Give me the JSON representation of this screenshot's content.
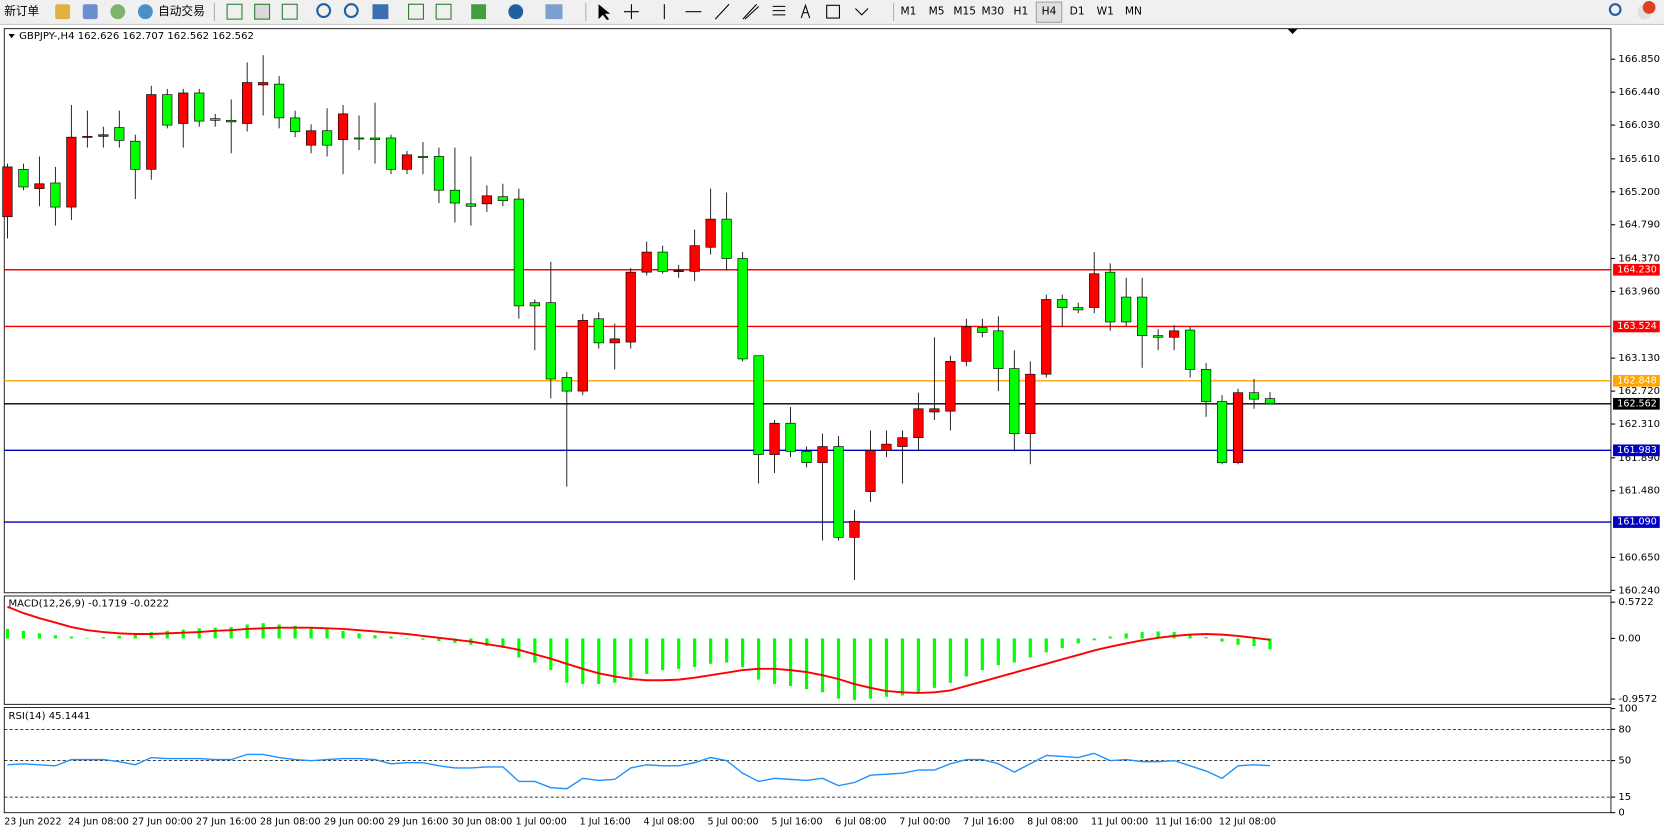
{
  "toolbar": {
    "new_order": "新订单",
    "auto_trading": "自动交易",
    "timeframes": [
      "M1",
      "M5",
      "M15",
      "M30",
      "H1",
      "H4",
      "D1",
      "W1",
      "MN"
    ],
    "active_timeframe_index": 5
  },
  "chart_data": [
    {
      "type": "candlestick",
      "title": "GBPJPY-,H4  162.626 162.707 162.562 162.562",
      "categories": [
        "23 Jun 2022",
        null,
        null,
        null,
        "24 Jun 08:00",
        null,
        null,
        null,
        "27 Jun 00:00",
        null,
        null,
        null,
        "27 Jun 16:00",
        null,
        null,
        null,
        "28 Jun 08:00",
        null,
        null,
        null,
        "29 Jun 00:00",
        null,
        null,
        null,
        "29 Jun 16:00",
        null,
        null,
        null,
        "30 Jun 08:00",
        null,
        null,
        null,
        "1 Jul 00:00",
        null,
        null,
        null,
        "1 Jul 16:00",
        null,
        null,
        null,
        "4 Jul 08:00",
        null,
        null,
        null,
        "5 Jul 00:00",
        null,
        null,
        null,
        "5 Jul 16:00",
        null,
        null,
        null,
        "6 Jul 08:00",
        null,
        null,
        null,
        "7 Jul 00:00",
        null,
        null,
        null,
        "7 Jul 16:00",
        null,
        null,
        null,
        "8 Jul 08:00",
        null,
        null,
        null,
        "11 Jul 00:00",
        null,
        null,
        null,
        "11 Jul 16:00",
        null,
        null,
        null,
        "12 Jul 08:00",
        null,
        null,
        null
      ],
      "open": [
        164.89,
        165.48,
        165.24,
        165.31,
        165.01,
        165.88,
        165.89,
        166.0,
        165.83,
        165.48,
        166.41,
        166.05,
        166.43,
        166.11,
        166.09,
        166.05,
        166.53,
        166.54,
        166.12,
        165.78,
        165.96,
        165.85,
        165.87,
        165.87,
        165.87,
        165.48,
        165.64,
        165.64,
        165.22,
        165.05,
        165.05,
        165.14,
        165.11,
        163.82,
        163.82,
        162.89,
        162.72,
        163.62,
        163.32,
        163.33,
        164.2,
        164.45,
        164.21,
        164.21,
        164.51,
        164.86,
        164.37,
        163.16,
        161.93,
        162.32,
        161.97,
        161.83,
        162.03,
        160.9,
        161.47,
        161.98,
        162.03,
        162.14,
        162.46,
        162.47,
        163.09,
        163.51,
        163.47,
        163.0,
        162.19,
        162.93,
        163.86,
        163.76,
        163.76,
        164.2,
        163.89,
        163.89,
        163.41,
        163.39,
        163.48,
        162.99,
        162.59,
        161.83,
        162.7,
        162.626
      ],
      "high": [
        165.55,
        165.55,
        165.64,
        165.51,
        166.28,
        166.21,
        166.01,
        166.21,
        165.91,
        166.52,
        166.48,
        166.48,
        166.48,
        166.17,
        166.35,
        166.81,
        166.9,
        166.64,
        166.21,
        166.04,
        166.24,
        166.28,
        166.15,
        166.31,
        165.91,
        165.71,
        165.82,
        165.75,
        165.75,
        165.64,
        165.28,
        165.3,
        165.24,
        163.86,
        164.33,
        162.96,
        163.68,
        163.7,
        163.56,
        164.25,
        164.58,
        164.53,
        164.29,
        164.73,
        165.24,
        165.19,
        164.45,
        163.16,
        162.36,
        162.52,
        162.03,
        162.19,
        162.16,
        161.24,
        162.23,
        162.23,
        162.23,
        162.7,
        163.39,
        163.16,
        163.62,
        163.62,
        163.65,
        163.23,
        163.09,
        163.92,
        163.92,
        163.82,
        164.45,
        164.31,
        164.13,
        164.13,
        163.49,
        163.54,
        163.52,
        163.07,
        162.67,
        162.75,
        162.87,
        162.707
      ],
      "low": [
        164.62,
        165.22,
        165.02,
        164.78,
        164.85,
        165.75,
        165.75,
        165.75,
        165.11,
        165.35,
        165.99,
        165.75,
        166.01,
        166.01,
        165.68,
        165.95,
        166.15,
        165.99,
        165.88,
        165.68,
        165.64,
        165.42,
        165.72,
        165.55,
        165.42,
        165.42,
        165.42,
        165.06,
        164.82,
        164.78,
        164.95,
        165.02,
        163.62,
        163.23,
        162.63,
        161.53,
        162.67,
        163.25,
        162.99,
        163.25,
        164.16,
        164.18,
        164.13,
        164.09,
        164.42,
        164.22,
        163.09,
        161.57,
        161.7,
        161.9,
        161.77,
        160.86,
        160.86,
        160.37,
        161.34,
        161.9,
        161.57,
        161.97,
        162.36,
        162.23,
        163.03,
        163.39,
        162.72,
        161.97,
        161.81,
        162.89,
        163.52,
        163.69,
        163.69,
        163.47,
        163.53,
        163.01,
        163.23,
        163.23,
        162.89,
        162.4,
        161.81,
        161.81,
        162.5,
        162.562
      ],
      "close": [
        165.51,
        165.26,
        165.3,
        165.01,
        165.88,
        165.89,
        165.91,
        165.84,
        165.48,
        166.41,
        166.03,
        166.43,
        166.08,
        166.09,
        166.07,
        166.56,
        166.56,
        166.12,
        165.95,
        165.96,
        165.78,
        166.17,
        165.87,
        165.85,
        165.48,
        165.66,
        165.64,
        165.22,
        165.06,
        165.02,
        165.15,
        165.09,
        163.78,
        163.78,
        162.87,
        162.72,
        163.6,
        163.32,
        163.37,
        164.2,
        164.45,
        164.21,
        164.22,
        164.53,
        164.86,
        164.37,
        163.12,
        161.93,
        162.32,
        161.97,
        161.83,
        162.03,
        160.9,
        161.1,
        161.98,
        162.06,
        162.14,
        162.5,
        162.5,
        163.09,
        163.52,
        163.45,
        163.0,
        162.19,
        162.93,
        163.86,
        163.76,
        163.73,
        164.18,
        163.58,
        163.58,
        163.41,
        163.39,
        163.47,
        162.99,
        162.59,
        161.83,
        162.7,
        162.62,
        162.562
      ],
      "up_color": "#ff0000",
      "down_color": "#00ff00",
      "ylim": [
        160.21,
        167.23
      ],
      "yticks": [
        {
          "value": 166.85,
          "label": "166.850"
        },
        {
          "value": 166.44,
          "label": "166.440"
        },
        {
          "value": 166.03,
          "label": "166.030"
        },
        {
          "value": 165.61,
          "label": "165.610"
        },
        {
          "value": 165.2,
          "label": "165.200"
        },
        {
          "value": 164.79,
          "label": "164.790"
        },
        {
          "value": 164.37,
          "label": "164.370"
        },
        {
          "value": 163.96,
          "label": "163.960"
        },
        {
          "value": 163.13,
          "label": "163.130"
        },
        {
          "value": 162.72,
          "label": "162.720"
        },
        {
          "value": 162.31,
          "label": "162.310"
        },
        {
          "value": 161.89,
          "label": "161.890"
        },
        {
          "value": 161.48,
          "label": "161.480"
        },
        {
          "value": 160.65,
          "label": "160.650"
        },
        {
          "value": 160.24,
          "label": "160.240"
        }
      ],
      "levels": [
        {
          "value": 164.23,
          "label": "164.230",
          "color": "#ff0000"
        },
        {
          "value": 163.524,
          "label": "163.524",
          "color": "#ff0000"
        },
        {
          "value": 162.848,
          "label": "162.848",
          "color": "#ffa500"
        },
        {
          "value": 162.562,
          "label": "162.562",
          "color": "#000000"
        },
        {
          "value": 161.983,
          "label": "161.983",
          "color": "#0000c0"
        },
        {
          "value": 161.09,
          "label": "161.090",
          "color": "#0000c0"
        }
      ],
      "grid": false
    },
    {
      "type": "macd",
      "title": "MACD(12,26,9) -0.1719 -0.0222",
      "histogram": {
        "color": "#00ff00",
        "values": [
          0.15,
          0.12,
          0.08,
          0.05,
          0.03,
          0.01,
          0.02,
          0.04,
          0.06,
          0.1,
          0.12,
          0.14,
          0.16,
          0.17,
          0.18,
          0.22,
          0.24,
          0.22,
          0.2,
          0.17,
          0.15,
          0.12,
          0.08,
          0.05,
          0.03,
          0.0,
          -0.02,
          -0.04,
          -0.07,
          -0.1,
          -0.12,
          -0.15,
          -0.3,
          -0.38,
          -0.5,
          -0.7,
          -0.72,
          -0.72,
          -0.7,
          -0.62,
          -0.56,
          -0.5,
          -0.48,
          -0.45,
          -0.4,
          -0.38,
          -0.45,
          -0.65,
          -0.72,
          -0.75,
          -0.8,
          -0.85,
          -0.95,
          -0.97,
          -0.95,
          -0.92,
          -0.9,
          -0.85,
          -0.78,
          -0.7,
          -0.6,
          -0.5,
          -0.42,
          -0.38,
          -0.3,
          -0.22,
          -0.15,
          -0.08,
          -0.03,
          0.03,
          0.08,
          0.1,
          0.11,
          0.1,
          0.06,
          0.02,
          -0.05,
          -0.1,
          -0.12,
          -0.1719
        ]
      },
      "signal": {
        "color": "#ff0000",
        "values": [
          0.5,
          0.4,
          0.32,
          0.25,
          0.18,
          0.13,
          0.1,
          0.08,
          0.07,
          0.07,
          0.08,
          0.09,
          0.1,
          0.12,
          0.13,
          0.15,
          0.16,
          0.17,
          0.17,
          0.17,
          0.16,
          0.15,
          0.13,
          0.11,
          0.09,
          0.07,
          0.04,
          0.01,
          -0.02,
          -0.05,
          -0.09,
          -0.13,
          -0.18,
          -0.25,
          -0.32,
          -0.4,
          -0.48,
          -0.55,
          -0.6,
          -0.64,
          -0.66,
          -0.66,
          -0.65,
          -0.62,
          -0.58,
          -0.54,
          -0.5,
          -0.48,
          -0.48,
          -0.5,
          -0.53,
          -0.58,
          -0.64,
          -0.72,
          -0.78,
          -0.83,
          -0.85,
          -0.86,
          -0.85,
          -0.82,
          -0.75,
          -0.68,
          -0.61,
          -0.54,
          -0.47,
          -0.4,
          -0.33,
          -0.26,
          -0.19,
          -0.13,
          -0.08,
          -0.03,
          0.01,
          0.04,
          0.06,
          0.07,
          0.06,
          0.04,
          0.01,
          -0.0222
        ]
      },
      "ylim": [
        -1.04,
        0.67
      ],
      "yticks": [
        0.5722,
        {
          "value": 0,
          "label": "0.00"
        },
        -0.9572
      ]
    },
    {
      "type": "line",
      "title": "RSI(14) 45.1441",
      "color": "#1e90ff",
      "values": [
        46,
        47,
        46,
        45,
        51,
        51,
        51,
        49,
        46,
        53,
        52,
        52,
        52,
        51,
        51,
        56,
        56,
        53,
        51,
        50,
        51,
        52,
        52,
        51,
        47,
        48,
        48,
        45,
        43,
        43,
        44,
        44,
        30,
        30,
        24,
        23,
        33,
        31,
        32,
        43,
        46,
        45,
        45,
        48,
        53,
        50,
        38,
        30,
        33,
        32,
        31,
        33,
        26,
        29,
        36,
        37,
        38,
        41,
        41,
        47,
        51,
        51,
        47,
        39,
        47,
        55,
        54,
        53,
        57,
        50,
        51,
        49,
        49,
        50,
        45,
        40,
        33,
        45,
        46,
        45.1441
      ],
      "ylim": [
        0,
        100
      ],
      "yticks": [
        100,
        80,
        50,
        15,
        0
      ],
      "levels": [
        80,
        50,
        15
      ]
    }
  ]
}
